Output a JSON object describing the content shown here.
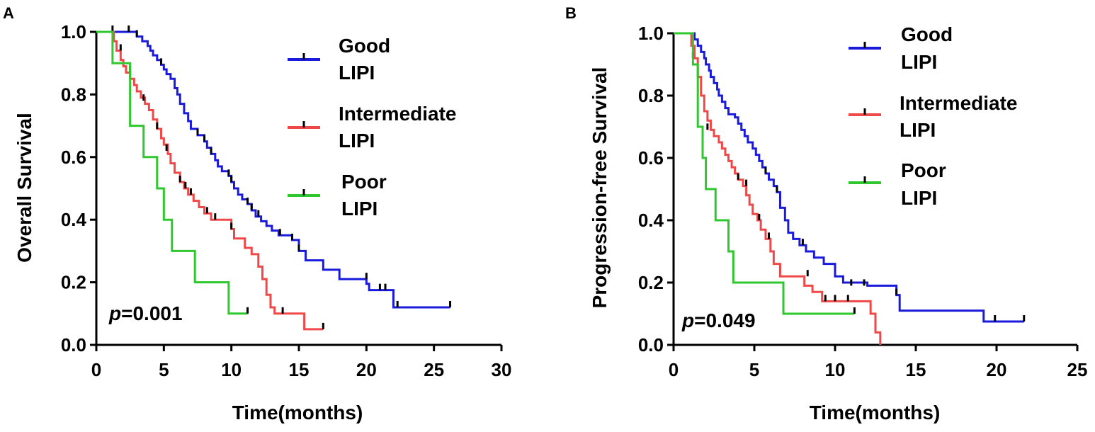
{
  "colors": {
    "good": "#1a1adb",
    "intermediate": "#f04848",
    "poor": "#2ec82e",
    "axis": "#000000"
  },
  "chart_data": [
    {
      "panel": "A",
      "type": "line",
      "subtype": "kaplan-meier",
      "title": "",
      "xlabel": "Time(months)",
      "ylabel": "Overall Survival",
      "xlim": [
        0,
        30
      ],
      "ylim": [
        0,
        1.0
      ],
      "xticks": [
        0,
        5,
        10,
        15,
        20,
        25,
        30
      ],
      "yticks": [
        0.0,
        0.2,
        0.4,
        0.6,
        0.8,
        1.0
      ],
      "xtick_labels": [
        "0",
        "5",
        "10",
        "15",
        "20",
        "25",
        "30"
      ],
      "ytick_labels": [
        "0.0",
        "0.2",
        "0.4",
        "0.6",
        "0.8",
        "1.0"
      ],
      "legend_position": "top-right",
      "annotation": {
        "p_label": "p",
        "p_value": "=0.001",
        "position": "bottom-left"
      },
      "series": [
        {
          "key": "good",
          "name_line1": "Good",
          "name_line2": "LIPI",
          "steps": [
            [
              0,
              1.0
            ],
            [
              3.0,
              0.985
            ],
            [
              3.4,
              0.97
            ],
            [
              3.8,
              0.955
            ],
            [
              4.0,
              0.94
            ],
            [
              4.2,
              0.925
            ],
            [
              4.5,
              0.91
            ],
            [
              4.8,
              0.895
            ],
            [
              5.0,
              0.88
            ],
            [
              5.2,
              0.865
            ],
            [
              5.5,
              0.85
            ],
            [
              5.8,
              0.82
            ],
            [
              6.0,
              0.8
            ],
            [
              6.2,
              0.77
            ],
            [
              6.5,
              0.74
            ],
            [
              6.8,
              0.715
            ],
            [
              7.0,
              0.69
            ],
            [
              7.5,
              0.67
            ],
            [
              8.0,
              0.65
            ],
            [
              8.2,
              0.63
            ],
            [
              8.5,
              0.61
            ],
            [
              8.8,
              0.59
            ],
            [
              9.0,
              0.57
            ],
            [
              9.3,
              0.555
            ],
            [
              9.8,
              0.54
            ],
            [
              10.0,
              0.52
            ],
            [
              10.2,
              0.5
            ],
            [
              10.5,
              0.48
            ],
            [
              10.8,
              0.465
            ],
            [
              11.2,
              0.45
            ],
            [
              11.5,
              0.43
            ],
            [
              11.8,
              0.41
            ],
            [
              12.2,
              0.395
            ],
            [
              12.6,
              0.38
            ],
            [
              13.0,
              0.365
            ],
            [
              13.5,
              0.35
            ],
            [
              14.5,
              0.335
            ],
            [
              15.0,
              0.3
            ],
            [
              15.5,
              0.27
            ],
            [
              16.8,
              0.24
            ],
            [
              18.0,
              0.21
            ],
            [
              20.0,
              0.195
            ],
            [
              20.2,
              0.175
            ],
            [
              22.0,
              0.12
            ]
          ],
          "end": 26.2,
          "censors": [
            [
              1.2,
              1.0
            ],
            [
              2.4,
              1.0
            ],
            [
              3.0,
              0.985
            ],
            [
              4.8,
              0.895
            ],
            [
              7.5,
              0.67
            ],
            [
              8.0,
              0.65
            ],
            [
              8.5,
              0.61
            ],
            [
              9.8,
              0.54
            ],
            [
              10.0,
              0.52
            ],
            [
              11.2,
              0.45
            ],
            [
              11.5,
              0.43
            ],
            [
              12.0,
              0.41
            ],
            [
              13.6,
              0.35
            ],
            [
              14.5,
              0.335
            ],
            [
              15.0,
              0.3
            ],
            [
              20.0,
              0.21
            ],
            [
              21.0,
              0.175
            ],
            [
              21.4,
              0.175
            ],
            [
              22.3,
              0.12
            ],
            [
              26.2,
              0.12
            ]
          ]
        },
        {
          "key": "intermediate",
          "name_line1": "Intermediate",
          "name_line2": "LIPI",
          "steps": [
            [
              0,
              1.0
            ],
            [
              1.3,
              0.97
            ],
            [
              1.5,
              0.94
            ],
            [
              1.8,
              0.91
            ],
            [
              2.0,
              0.89
            ],
            [
              2.2,
              0.87
            ],
            [
              2.5,
              0.85
            ],
            [
              2.8,
              0.83
            ],
            [
              3.0,
              0.81
            ],
            [
              3.3,
              0.79
            ],
            [
              3.6,
              0.77
            ],
            [
              3.9,
              0.75
            ],
            [
              4.2,
              0.72
            ],
            [
              4.5,
              0.69
            ],
            [
              4.8,
              0.66
            ],
            [
              5.0,
              0.64
            ],
            [
              5.3,
              0.61
            ],
            [
              5.5,
              0.58
            ],
            [
              5.8,
              0.55
            ],
            [
              6.2,
              0.52
            ],
            [
              6.5,
              0.5
            ],
            [
              6.8,
              0.48
            ],
            [
              7.2,
              0.46
            ],
            [
              7.6,
              0.44
            ],
            [
              8.0,
              0.42
            ],
            [
              8.5,
              0.4
            ],
            [
              10.0,
              0.37
            ],
            [
              10.2,
              0.34
            ],
            [
              11.0,
              0.31
            ],
            [
              11.5,
              0.29
            ],
            [
              12.0,
              0.25
            ],
            [
              12.3,
              0.21
            ],
            [
              12.6,
              0.16
            ],
            [
              12.9,
              0.12
            ],
            [
              13.2,
              0.1
            ],
            [
              15.4,
              0.05
            ]
          ],
          "end": 16.8,
          "censors": [
            [
              1.8,
              0.94
            ],
            [
              2.5,
              0.87
            ],
            [
              3.5,
              0.78
            ],
            [
              4.5,
              0.69
            ],
            [
              5.2,
              0.62
            ],
            [
              6.2,
              0.52
            ],
            [
              6.6,
              0.5
            ],
            [
              7.0,
              0.48
            ],
            [
              8.2,
              0.42
            ],
            [
              8.8,
              0.4
            ],
            [
              10.0,
              0.37
            ],
            [
              13.8,
              0.1
            ],
            [
              16.8,
              0.05
            ]
          ]
        },
        {
          "key": "poor",
          "name_line1": "Poor",
          "name_line2": "LIPI",
          "steps": [
            [
              0,
              1.0
            ],
            [
              1.2,
              0.9
            ],
            [
              2.5,
              0.7
            ],
            [
              3.5,
              0.6
            ],
            [
              4.5,
              0.5
            ],
            [
              5.0,
              0.4
            ],
            [
              5.6,
              0.3
            ],
            [
              7.3,
              0.2
            ],
            [
              9.8,
              0.1
            ]
          ],
          "end": 11.2,
          "censors": [
            [
              11.2,
              0.1
            ]
          ]
        }
      ]
    },
    {
      "panel": "B",
      "type": "line",
      "subtype": "kaplan-meier",
      "title": "",
      "xlabel": "Time(months)",
      "ylabel": "Progression-free Survival",
      "xlim": [
        0,
        25
      ],
      "ylim": [
        0,
        1.0
      ],
      "xticks": [
        0,
        5,
        10,
        15,
        20,
        25
      ],
      "yticks": [
        0.0,
        0.2,
        0.4,
        0.6,
        0.8,
        1.0
      ],
      "xtick_labels": [
        "0",
        "5",
        "10",
        "15",
        "20",
        "25"
      ],
      "ytick_labels": [
        "0.0",
        "0.2",
        "0.4",
        "0.6",
        "0.8",
        "1.0"
      ],
      "legend_position": "top-right",
      "annotation": {
        "p_label": "p",
        "p_value": "=0.049",
        "position": "bottom-left"
      },
      "series": [
        {
          "key": "good",
          "name_line1": "Good",
          "name_line2": "LIPI",
          "steps": [
            [
              0,
              1.0
            ],
            [
              1.3,
              0.98
            ],
            [
              1.5,
              0.96
            ],
            [
              1.7,
              0.94
            ],
            [
              1.9,
              0.92
            ],
            [
              2.0,
              0.9
            ],
            [
              2.2,
              0.88
            ],
            [
              2.3,
              0.86
            ],
            [
              2.5,
              0.84
            ],
            [
              2.7,
              0.82
            ],
            [
              2.8,
              0.8
            ],
            [
              3.0,
              0.78
            ],
            [
              3.2,
              0.76
            ],
            [
              3.4,
              0.74
            ],
            [
              3.8,
              0.73
            ],
            [
              4.0,
              0.71
            ],
            [
              4.2,
              0.69
            ],
            [
              4.4,
              0.67
            ],
            [
              4.6,
              0.65
            ],
            [
              4.9,
              0.63
            ],
            [
              5.1,
              0.61
            ],
            [
              5.3,
              0.59
            ],
            [
              5.5,
              0.57
            ],
            [
              5.7,
              0.55
            ],
            [
              5.9,
              0.53
            ],
            [
              6.2,
              0.51
            ],
            [
              6.4,
              0.49
            ],
            [
              6.6,
              0.44
            ],
            [
              6.9,
              0.4
            ],
            [
              7.1,
              0.36
            ],
            [
              7.4,
              0.34
            ],
            [
              7.8,
              0.32
            ],
            [
              8.2,
              0.3
            ],
            [
              8.7,
              0.28
            ],
            [
              9.3,
              0.26
            ],
            [
              10.0,
              0.22
            ],
            [
              10.5,
              0.2
            ],
            [
              12.0,
              0.19
            ],
            [
              13.8,
              0.16
            ],
            [
              14.0,
              0.11
            ],
            [
              19.2,
              0.075
            ]
          ],
          "end": 21.7,
          "censors": [
            [
              5.7,
              0.55
            ],
            [
              6.4,
              0.49
            ],
            [
              8.0,
              0.32
            ],
            [
              11.0,
              0.19
            ],
            [
              11.8,
              0.19
            ],
            [
              13.8,
              0.16
            ],
            [
              19.9,
              0.075
            ],
            [
              21.7,
              0.075
            ]
          ]
        },
        {
          "key": "intermediate",
          "name_line1": "Intermediate",
          "name_line2": "LIPI",
          "steps": [
            [
              0,
              1.0
            ],
            [
              1.1,
              0.96
            ],
            [
              1.3,
              0.92
            ],
            [
              1.5,
              0.86
            ],
            [
              1.7,
              0.8
            ],
            [
              1.9,
              0.75
            ],
            [
              2.1,
              0.72
            ],
            [
              2.3,
              0.69
            ],
            [
              2.5,
              0.67
            ],
            [
              2.8,
              0.65
            ],
            [
              3.0,
              0.63
            ],
            [
              3.2,
              0.61
            ],
            [
              3.4,
              0.59
            ],
            [
              3.6,
              0.57
            ],
            [
              3.8,
              0.55
            ],
            [
              4.0,
              0.53
            ],
            [
              4.3,
              0.51
            ],
            [
              4.5,
              0.48
            ],
            [
              4.7,
              0.45
            ],
            [
              4.9,
              0.42
            ],
            [
              5.2,
              0.4
            ],
            [
              5.4,
              0.37
            ],
            [
              5.7,
              0.34
            ],
            [
              6.0,
              0.3
            ],
            [
              6.2,
              0.26
            ],
            [
              6.6,
              0.22
            ],
            [
              8.1,
              0.19
            ],
            [
              8.6,
              0.17
            ],
            [
              9.2,
              0.14
            ],
            [
              12.2,
              0.1
            ],
            [
              12.5,
              0.04
            ],
            [
              12.8,
              0.0
            ]
          ],
          "end": 12.8,
          "censors": [
            [
              1.2,
              0.92
            ],
            [
              2.1,
              0.69
            ],
            [
              4.0,
              0.53
            ],
            [
              4.5,
              0.51
            ],
            [
              5.3,
              0.4
            ],
            [
              5.9,
              0.34
            ],
            [
              8.3,
              0.22
            ],
            [
              9.4,
              0.14
            ],
            [
              10.0,
              0.14
            ],
            [
              10.8,
              0.14
            ]
          ]
        },
        {
          "key": "poor",
          "name_line1": "Poor",
          "name_line2": "LIPI",
          "steps": [
            [
              0,
              1.0
            ],
            [
              1.2,
              0.9
            ],
            [
              1.5,
              0.7
            ],
            [
              1.8,
              0.6
            ],
            [
              2.0,
              0.5
            ],
            [
              2.6,
              0.4
            ],
            [
              3.4,
              0.3
            ],
            [
              3.7,
              0.2
            ],
            [
              6.8,
              0.1
            ]
          ],
          "end": 11.2,
          "censors": [
            [
              11.2,
              0.1
            ]
          ]
        }
      ]
    }
  ]
}
